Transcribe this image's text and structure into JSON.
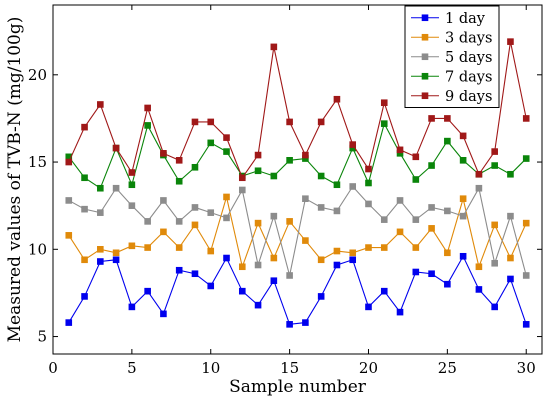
{
  "chart_data": {
    "type": "line",
    "xlabel": "Sample number",
    "ylabel": "Measured values of TVB-N (mg/100g)",
    "xlim": [
      0,
      31
    ],
    "ylim": [
      4,
      24
    ],
    "xticks": [
      0,
      5,
      10,
      15,
      20,
      25,
      30
    ],
    "yticks": [
      5,
      10,
      15,
      20
    ],
    "grid": false,
    "legend_position": "top-right",
    "x": [
      1,
      2,
      3,
      4,
      5,
      6,
      7,
      8,
      9,
      10,
      11,
      12,
      13,
      14,
      15,
      16,
      17,
      18,
      19,
      20,
      21,
      22,
      23,
      24,
      25,
      26,
      27,
      28,
      29,
      30
    ],
    "series": [
      {
        "name": "1 day",
        "color": "#0000ee",
        "marker": "square",
        "values": [
          5.8,
          7.3,
          9.3,
          9.4,
          6.7,
          7.6,
          6.3,
          8.8,
          8.6,
          7.9,
          9.5,
          7.6,
          6.8,
          8.2,
          5.7,
          5.8,
          7.3,
          9.1,
          9.4,
          6.7,
          7.6,
          6.4,
          8.7,
          8.6,
          8.0,
          9.6,
          7.7,
          6.7,
          8.3,
          5.7
        ]
      },
      {
        "name": "3 days",
        "color": "#e08a0a",
        "marker": "square",
        "values": [
          10.8,
          9.4,
          10.0,
          9.8,
          10.2,
          10.1,
          11.0,
          10.1,
          11.4,
          9.9,
          13.0,
          9.0,
          11.5,
          9.5,
          11.6,
          10.5,
          9.4,
          9.9,
          9.8,
          10.1,
          10.1,
          11.0,
          10.1,
          11.2,
          9.8,
          12.9,
          9.0,
          11.4,
          9.5,
          11.5
        ]
      },
      {
        "name": "5 days",
        "color": "#8c8c8c",
        "marker": "square",
        "values": [
          12.8,
          12.3,
          12.1,
          13.5,
          12.5,
          11.6,
          12.8,
          11.6,
          12.4,
          12.1,
          11.8,
          13.4,
          9.1,
          11.9,
          8.5,
          12.9,
          12.4,
          12.2,
          13.6,
          12.6,
          11.7,
          12.8,
          11.7,
          12.4,
          12.2,
          11.9,
          13.5,
          9.2,
          11.9,
          8.5
        ]
      },
      {
        "name": "7 days",
        "color": "#0a850a",
        "marker": "square",
        "values": [
          15.3,
          14.1,
          13.5,
          15.8,
          13.7,
          17.1,
          15.4,
          13.9,
          14.7,
          16.1,
          15.6,
          14.2,
          14.5,
          14.2,
          15.1,
          15.2,
          14.2,
          13.7,
          15.8,
          13.8,
          17.2,
          15.5,
          14.0,
          14.8,
          16.2,
          15.1,
          14.3,
          14.8,
          14.3,
          15.2
        ]
      },
      {
        "name": "9 days",
        "color": "#a01818",
        "marker": "square",
        "values": [
          15.0,
          17.0,
          18.3,
          15.8,
          14.4,
          18.1,
          15.5,
          15.1,
          17.3,
          17.3,
          16.4,
          14.1,
          15.4,
          21.6,
          17.3,
          15.4,
          17.3,
          18.6,
          16.0,
          14.6,
          18.4,
          15.7,
          15.3,
          17.5,
          17.5,
          16.5,
          14.3,
          15.6,
          21.9,
          17.5
        ]
      }
    ]
  }
}
